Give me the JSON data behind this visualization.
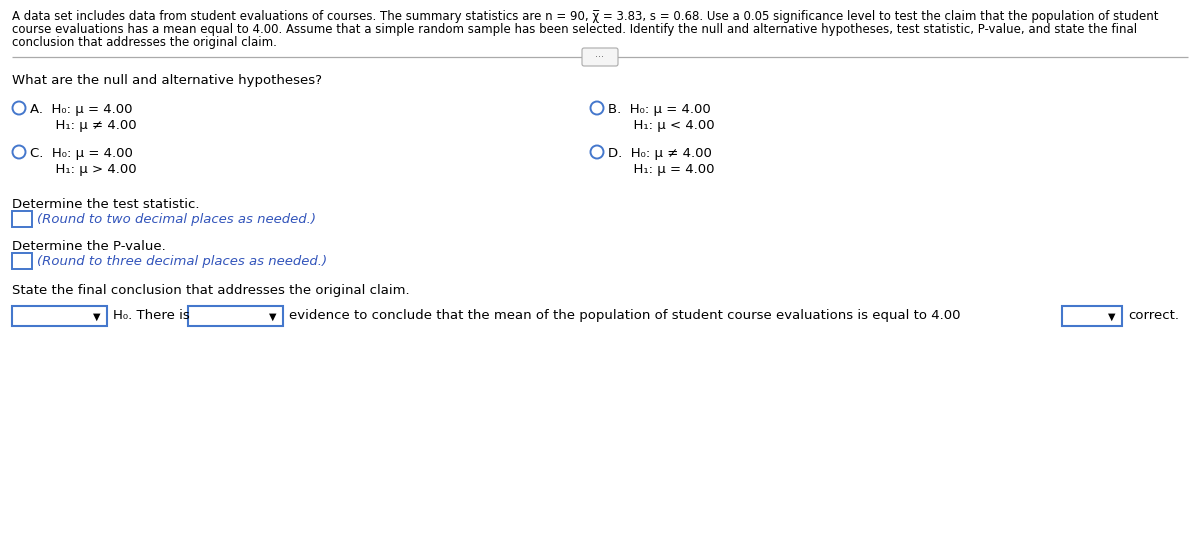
{
  "title_line1": "A data set includes data from student evaluations of courses. The summary statistics are n = 90, χ̅ = 3.83, s = 0.68. Use a 0.05 significance level to test the claim that the population of student",
  "title_line2": "course evaluations has a mean equal to 4.00. Assume that a simple random sample has been selected. Identify the null and alternative hypotheses, test statistic, P-value, and state the final",
  "title_line3": "conclusion that addresses the original claim.",
  "question1": "What are the null and alternative hypotheses?",
  "optA_line1": "A.  H₀: μ = 4.00",
  "optA_line2": "      H₁: μ ≠ 4.00",
  "optB_line1": "B.  H₀: μ = 4.00",
  "optB_line2": "      H₁: μ < 4.00",
  "optC_line1": "C.  H₀: μ = 4.00",
  "optC_line2": "      H₁: μ > 4.00",
  "optD_line1": "D.  H₀: μ ≠ 4.00",
  "optD_line2": "      H₁: μ = 4.00",
  "q2": "Determine the test statistic.",
  "q2_hint": "(Round to two decimal places as needed.)",
  "q3": "Determine the P-value.",
  "q3_hint": "(Round to three decimal places as needed.)",
  "q4": "State the final conclusion that addresses the original claim.",
  "q4_text": " evidence to conclude that the mean of the population of student course evaluations is equal to 4.00",
  "bg_color": "#ffffff",
  "text_color": "#000000",
  "hint_color": "#3355bb",
  "circle_color": "#4477cc",
  "box_edge_color": "#4477cc",
  "divider_color": "#aaaaaa",
  "dot_btn_color": "#888888"
}
